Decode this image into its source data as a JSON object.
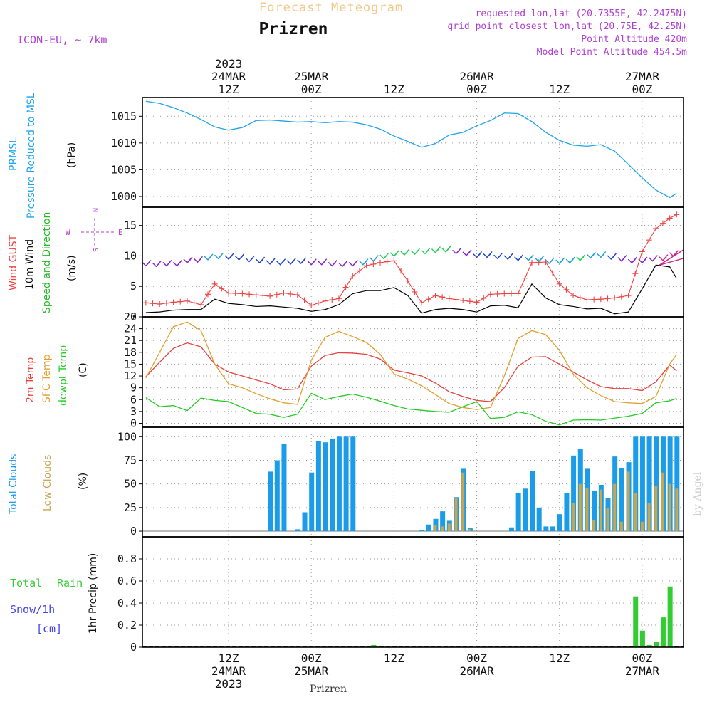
{
  "header": {
    "product": "Forecast Meteogram",
    "location": "Prizren",
    "model": "ICON-EU, ~ 7km",
    "info": [
      "requested lon,lat (20.7355E, 42.2475N)",
      "grid point closest lon,lat (20.75E, 42.25N)",
      "Point Altitude 420m",
      "Model Point Altitude 454.5m"
    ],
    "footer_location": "Prizren",
    "watermark": "by Angel",
    "compass": {
      "n": "N",
      "s": "S",
      "e": "E",
      "w": "W"
    }
  },
  "time_axis": {
    "top_labels": [
      {
        "t": 12,
        "lines": [
          "2023",
          "24MAR",
          "12Z"
        ]
      },
      {
        "t": 24,
        "lines": [
          "25MAR",
          "00Z"
        ]
      },
      {
        "t": 36,
        "lines": [
          "12Z"
        ]
      },
      {
        "t": 48,
        "lines": [
          "26MAR",
          "00Z"
        ]
      },
      {
        "t": 60,
        "lines": [
          "12Z"
        ]
      },
      {
        "t": 72,
        "lines": [
          "27MAR",
          "00Z"
        ]
      }
    ],
    "bottom_labels": [
      {
        "t": 12,
        "lines": [
          "12Z",
          "24MAR",
          "2023"
        ]
      },
      {
        "t": 24,
        "lines": [
          "00Z",
          "25MAR"
        ]
      },
      {
        "t": 36,
        "lines": [
          "12Z"
        ]
      },
      {
        "t": 48,
        "lines": [
          "00Z",
          "26MAR"
        ]
      },
      {
        "t": 60,
        "lines": [
          "12Z"
        ]
      },
      {
        "t": 72,
        "lines": [
          "00Z",
          "27MAR"
        ]
      }
    ]
  },
  "colors": {
    "pressure": "#1fa5ec",
    "gust": "#ee4444",
    "wind": "#000000",
    "wind_label": "#22bb22",
    "t2m": "#e84040",
    "tsfc": "#e0a030",
    "dewpt": "#22cc22",
    "total_clouds": "#1a9ce8",
    "low_clouds": "#c8a550",
    "rain": "#33cc33",
    "snow": "#4444ee",
    "info": "#b040d0",
    "product": "#f2c88a"
  },
  "chart_data": [
    {
      "type": "line",
      "panel": "pressure",
      "labels": [
        "PRMSL",
        "Pressure Reduced to MSL"
      ],
      "ylabel": "(hPa)",
      "ylim": [
        998,
        1018.5
      ],
      "yticks": [
        1000,
        1005,
        1010,
        1015
      ],
      "x": [
        0,
        2,
        4,
        6,
        8,
        10,
        12,
        14,
        16,
        18,
        20,
        22,
        24,
        26,
        28,
        30,
        32,
        34,
        36,
        38,
        40,
        42,
        44,
        46,
        48,
        50,
        52,
        54,
        56,
        58,
        60,
        62,
        64,
        66,
        68,
        70,
        72,
        74,
        76,
        77
      ],
      "series": [
        {
          "values": [
            1017.8,
            1017.4,
            1016.6,
            1015.6,
            1014.4,
            1013,
            1012.4,
            1012.9,
            1014.2,
            1014.3,
            1014.1,
            1013.9,
            1014,
            1013.8,
            1014,
            1013.9,
            1013.4,
            1012.6,
            1011.3,
            1010.3,
            1009.2,
            1009.9,
            1011.5,
            1012,
            1013.2,
            1014.2,
            1015.6,
            1015.5,
            1014,
            1012,
            1010.5,
            1009.6,
            1009.4,
            1009.7,
            1008.5,
            1006,
            1003.5,
            1001.2,
            999.8,
            1000.6
          ]
        }
      ]
    },
    {
      "type": "line",
      "panel": "wind",
      "labels": [
        "Wind GUST",
        "10m Wind",
        "Speed and Direction"
      ],
      "ylabel": "(m/s)",
      "ylim": [
        0,
        18
      ],
      "yticks": [
        0,
        5,
        10,
        15
      ],
      "x": [
        0,
        2,
        4,
        6,
        8,
        10,
        12,
        14,
        16,
        18,
        20,
        22,
        24,
        26,
        28,
        30,
        32,
        34,
        36,
        38,
        40,
        42,
        44,
        46,
        48,
        50,
        52,
        54,
        56,
        58,
        60,
        62,
        64,
        66,
        68,
        70,
        72,
        74,
        76,
        77
      ],
      "series": [
        {
          "name": "Wind GUST",
          "values": [
            2.3,
            2.1,
            2.4,
            2.6,
            2,
            5.4,
            3.9,
            3.8,
            3.6,
            3.4,
            3.9,
            3.6,
            1.9,
            2.6,
            3,
            6.7,
            8.4,
            8.9,
            9.2,
            5.9,
            2.3,
            3.5,
            3,
            2.7,
            2.4,
            3.7,
            3.8,
            3.8,
            8.9,
            9,
            5.4,
            3.5,
            2.8,
            2.9,
            3.1,
            3.5,
            10.7,
            14.5,
            16.2,
            16.8
          ]
        },
        {
          "name": "10m Wind",
          "values": [
            0.7,
            0.8,
            1.1,
            1.2,
            1.2,
            2.9,
            2.2,
            2,
            1.7,
            1.8,
            1.6,
            1.4,
            0.9,
            1.2,
            2,
            3.8,
            4.3,
            4.3,
            4.8,
            3.5,
            0.6,
            1.2,
            1.4,
            1.2,
            0.8,
            1.8,
            1.9,
            1.5,
            5.4,
            3.1,
            2,
            1.7,
            1.3,
            1.4,
            0.5,
            0.8,
            4.6,
            8.5,
            8.2,
            6.3
          ]
        }
      ],
      "barbs_t": [
        0,
        1.5,
        3,
        4.5,
        6,
        7.5,
        9,
        10.5,
        12,
        13.5,
        15,
        16.5,
        18,
        19.5,
        21,
        22.5,
        24,
        25.5,
        27,
        28.5,
        30,
        31.5,
        33,
        34.5,
        36,
        37.5,
        39,
        40.5,
        42,
        43.5,
        45,
        46.5,
        48,
        49.5,
        51,
        52.5,
        54,
        55.5,
        57,
        58.5,
        60,
        61.5,
        63,
        64.5,
        66,
        67.5,
        69,
        70.5,
        72,
        73.5,
        75,
        76.5
      ],
      "barbs_speed": [
        8.6,
        8.5,
        8.6,
        8.6,
        9.1,
        9.2,
        9.6,
        9.8,
        9.7,
        9.6,
        9.3,
        9.1,
        8.9,
        8.8,
        8.9,
        9.0,
        8.8,
        8.8,
        8.6,
        8.5,
        8.6,
        8.8,
        9.4,
        9.8,
        10.2,
        10.4,
        10.5,
        10.6,
        10.8,
        10.9,
        10.6,
        10.3,
        10.0,
        10.0,
        9.8,
        9.7,
        9.5,
        9.5,
        9.3,
        9.0,
        9.0,
        9.1,
        9.5,
        9.9,
        10.0,
        9.7,
        9.4,
        9.1,
        9.1,
        9.4,
        9.5,
        10.2
      ],
      "barbs_color": [
        "#8822cc",
        "#8822cc",
        "#8822cc",
        "#8822cc",
        "#8822cc",
        "#8822cc",
        "#1f9fdc",
        "#1f9fdc",
        "#2244cc",
        "#2244cc",
        "#2244cc",
        "#2244cc",
        "#2244cc",
        "#2244cc",
        "#2244cc",
        "#2244cc",
        "#8822cc",
        "#8822cc",
        "#8822cc",
        "#8822cc",
        "#8822cc",
        "#1f9fdc",
        "#1f9fdc",
        "#22cc55",
        "#22cc55",
        "#22cc55",
        "#22cc55",
        "#22cc55",
        "#22cc55",
        "#22cc55",
        "#8822cc",
        "#8822cc",
        "#2244cc",
        "#2244cc",
        "#2244cc",
        "#2244cc",
        "#2244cc",
        "#1f9fdc",
        "#1f9fdc",
        "#1f9fdc",
        "#1f9fdc",
        "#1f9fdc",
        "#22cc55",
        "#1f9fdc",
        "#1f9fdc",
        "#2244cc",
        "#8822cc",
        "#8822cc",
        "#8822cc",
        "#8822cc",
        "#cc2288",
        "#cc2288"
      ]
    },
    {
      "type": "line",
      "panel": "temperature",
      "labels": [
        "2m Temp",
        "SFC Temp",
        "dewpt Temp"
      ],
      "ylabel": "(C)",
      "ylim": [
        -1,
        27
      ],
      "yticks": [
        0,
        3,
        6,
        9,
        12,
        15,
        18,
        21,
        24,
        27
      ],
      "x": [
        0,
        2,
        4,
        6,
        8,
        10,
        12,
        14,
        16,
        18,
        20,
        22,
        24,
        26,
        28,
        30,
        32,
        34,
        36,
        38,
        40,
        42,
        44,
        46,
        48,
        50,
        52,
        54,
        56,
        58,
        60,
        62,
        64,
        66,
        68,
        70,
        72,
        74,
        76,
        77
      ],
      "series": [
        {
          "name": "2m Temp",
          "values": [
            11.8,
            15.5,
            19,
            20.4,
            19.4,
            15,
            13,
            12,
            11,
            10,
            8.5,
            8.7,
            14.5,
            17.2,
            17.9,
            17.8,
            17.5,
            16.3,
            13.5,
            12.8,
            12,
            10.2,
            8,
            6.8,
            5.8,
            5.5,
            9,
            14.5,
            16.8,
            16.9,
            15,
            13,
            11,
            9.3,
            8.8,
            8.8,
            8.3,
            10.5,
            14.8,
            13.3
          ]
        },
        {
          "name": "SFC Temp",
          "values": [
            11.5,
            18,
            24.5,
            25.7,
            23.5,
            15,
            10,
            9,
            7.5,
            6.2,
            5.2,
            4.8,
            16,
            21.8,
            23.3,
            22,
            20.5,
            17.5,
            12.5,
            11.2,
            9.5,
            7.3,
            5,
            4,
            3.5,
            4,
            12,
            21.5,
            23.5,
            22.5,
            18.5,
            12.5,
            9,
            7,
            5.5,
            5.2,
            5,
            6.8,
            15,
            17.5
          ]
        },
        {
          "name": "dewpt Temp",
          "values": [
            6.5,
            4.2,
            4.5,
            3.2,
            6.4,
            5.8,
            5.5,
            4,
            2.5,
            2.3,
            1.5,
            2.3,
            7.6,
            6,
            6.8,
            7.4,
            6.6,
            5.6,
            4.5,
            3.6,
            3.3,
            3,
            2.8,
            4.2,
            5.5,
            1.2,
            1.5,
            2.9,
            2.2,
            0.5,
            -0.4,
            0.8,
            0.9,
            0.8,
            1.3,
            1.8,
            2.5,
            5.2,
            5.7,
            6.3
          ]
        }
      ]
    },
    {
      "type": "bar",
      "panel": "clouds",
      "labels": [
        "Total Clouds",
        "Low Clouds"
      ],
      "ylabel": "(%)",
      "ylim": [
        -6,
        110
      ],
      "yticks": [
        0,
        25,
        50,
        75,
        100
      ],
      "series": [
        {
          "name": "Total Clouds",
          "x": [
            18,
            19,
            20,
            22,
            23,
            24,
            25,
            26,
            27,
            28,
            29,
            30,
            40,
            41,
            42,
            43,
            44,
            45,
            46,
            47,
            53,
            54,
            55,
            56,
            57,
            58,
            59,
            60,
            61,
            62,
            63,
            64,
            65,
            66,
            67,
            68,
            69,
            70,
            71,
            72,
            73,
            74,
            75,
            76,
            77
          ],
          "values": [
            63,
            75,
            92,
            2,
            20,
            62,
            95,
            94,
            98,
            100,
            100,
            100,
            1,
            7,
            13,
            21,
            11,
            36,
            66,
            3,
            4,
            40,
            45,
            64,
            25,
            5,
            5,
            18,
            40,
            80,
            87,
            66,
            43,
            49,
            35,
            79,
            67,
            73,
            100,
            100,
            100,
            100,
            100,
            100,
            100
          ]
        },
        {
          "name": "Low Clouds",
          "x": [
            42,
            43,
            44,
            45,
            46,
            47,
            62,
            63,
            64,
            65,
            66,
            67,
            68,
            69,
            70,
            71,
            72,
            73,
            74,
            75,
            76,
            77
          ],
          "values": [
            6,
            5,
            8,
            35,
            62,
            2,
            30,
            50,
            46,
            12,
            44,
            25,
            50,
            10,
            63,
            40,
            10,
            30,
            48,
            62,
            50,
            45
          ]
        }
      ]
    },
    {
      "type": "bar",
      "panel": "precip",
      "labels": [
        "Total",
        "Rain",
        "Snow/1h",
        "[cm]"
      ],
      "ylabel": "1hr Precip (mm)",
      "ylim": [
        0,
        1
      ],
      "yticks": [
        0,
        0.2,
        0.4,
        0.6,
        0.8
      ],
      "series": [
        {
          "name": "Total Rain",
          "x": [
            33,
            71,
            72,
            73,
            74,
            75,
            76
          ],
          "values": [
            0.02,
            0.46,
            0.15,
            0.02,
            0.05,
            0.27,
            0.55
          ]
        }
      ]
    }
  ]
}
